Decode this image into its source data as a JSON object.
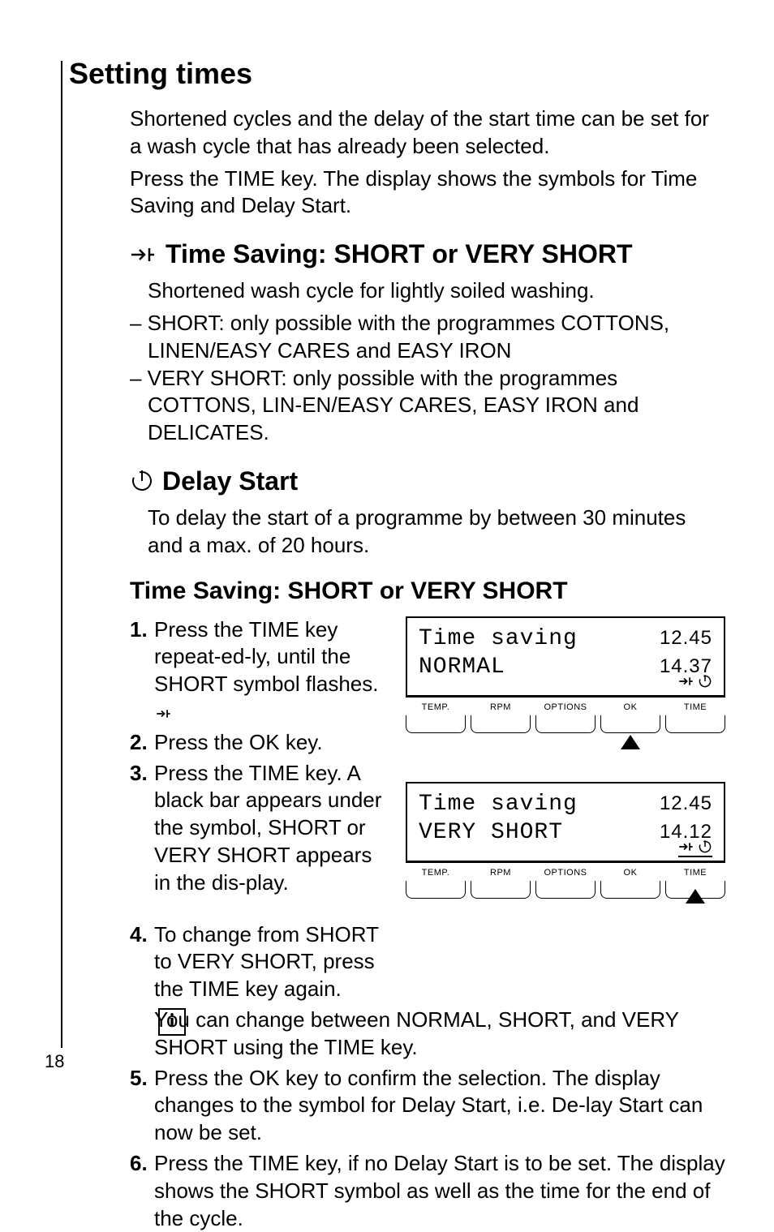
{
  "page_number": "18",
  "section_title": "Setting times",
  "intro1": "Shortened cycles and the delay of the start time can be set for a wash cycle that has already been selected.",
  "intro2": "Press the TIME key. The display shows the symbols for Time Saving and Delay Start.",
  "sub1_title": "Time Saving: SHORT or VERY SHORT",
  "sub1_line": "Shortened wash cycle for lightly soiled washing.",
  "sub1_dash1": "– SHORT: only possible with the programmes COTTONS, LINEN/EASY CARES and EASY IRON",
  "sub1_dash2": "– VERY SHORT: only possible with the programmes COTTONS, LIN-EN/EASY CARES, EASY IRON and DELICATES.",
  "sub2_title": "Delay Start",
  "sub2_text": "To delay the start of a programme by between 30 minutes and a max. of 20 hours.",
  "sub3_title": "Time Saving: SHORT or VERY SHORT",
  "steps": {
    "s1": "Press the TIME key repeat-ed-ly, until the SHORT symbol       flashes.",
    "s2": "Press the OK key.",
    "s3": "Press the TIME key. A black bar appears under the       symbol, SHORT or VERY SHORT appears in the dis-play.",
    "s4": "To change from SHORT to VERY SHORT, press the TIME key again.",
    "s5": "Press the OK key to confirm the selection. The display changes to the symbol for Delay Start, i.e. De-lay Start can now be set.",
    "s6": "Press the TIME key, if no Delay Start is to be set. The display shows the SHORT symbol       as well as the time for the end of the cycle."
  },
  "info_text": "You can change between NORMAL, SHORT, and VERY SHORT using the TIME key.",
  "display1": {
    "line1": "Time saving",
    "line2": "NORMAL",
    "time1": "12.45",
    "time2": "14.37",
    "underline_icons": false
  },
  "display2": {
    "line1": "Time saving",
    "line2": "VERY SHORT",
    "time1": "12.45",
    "time2": "14.12",
    "underline_icons": true
  },
  "buttons": [
    "TEMP.",
    "RPM",
    "OPTIONS",
    "OK",
    "TIME"
  ],
  "pointer_button_d1": "OK",
  "pointer_button_d2": "TIME",
  "colors": {
    "text": "#000000",
    "bg": "#ffffff"
  }
}
